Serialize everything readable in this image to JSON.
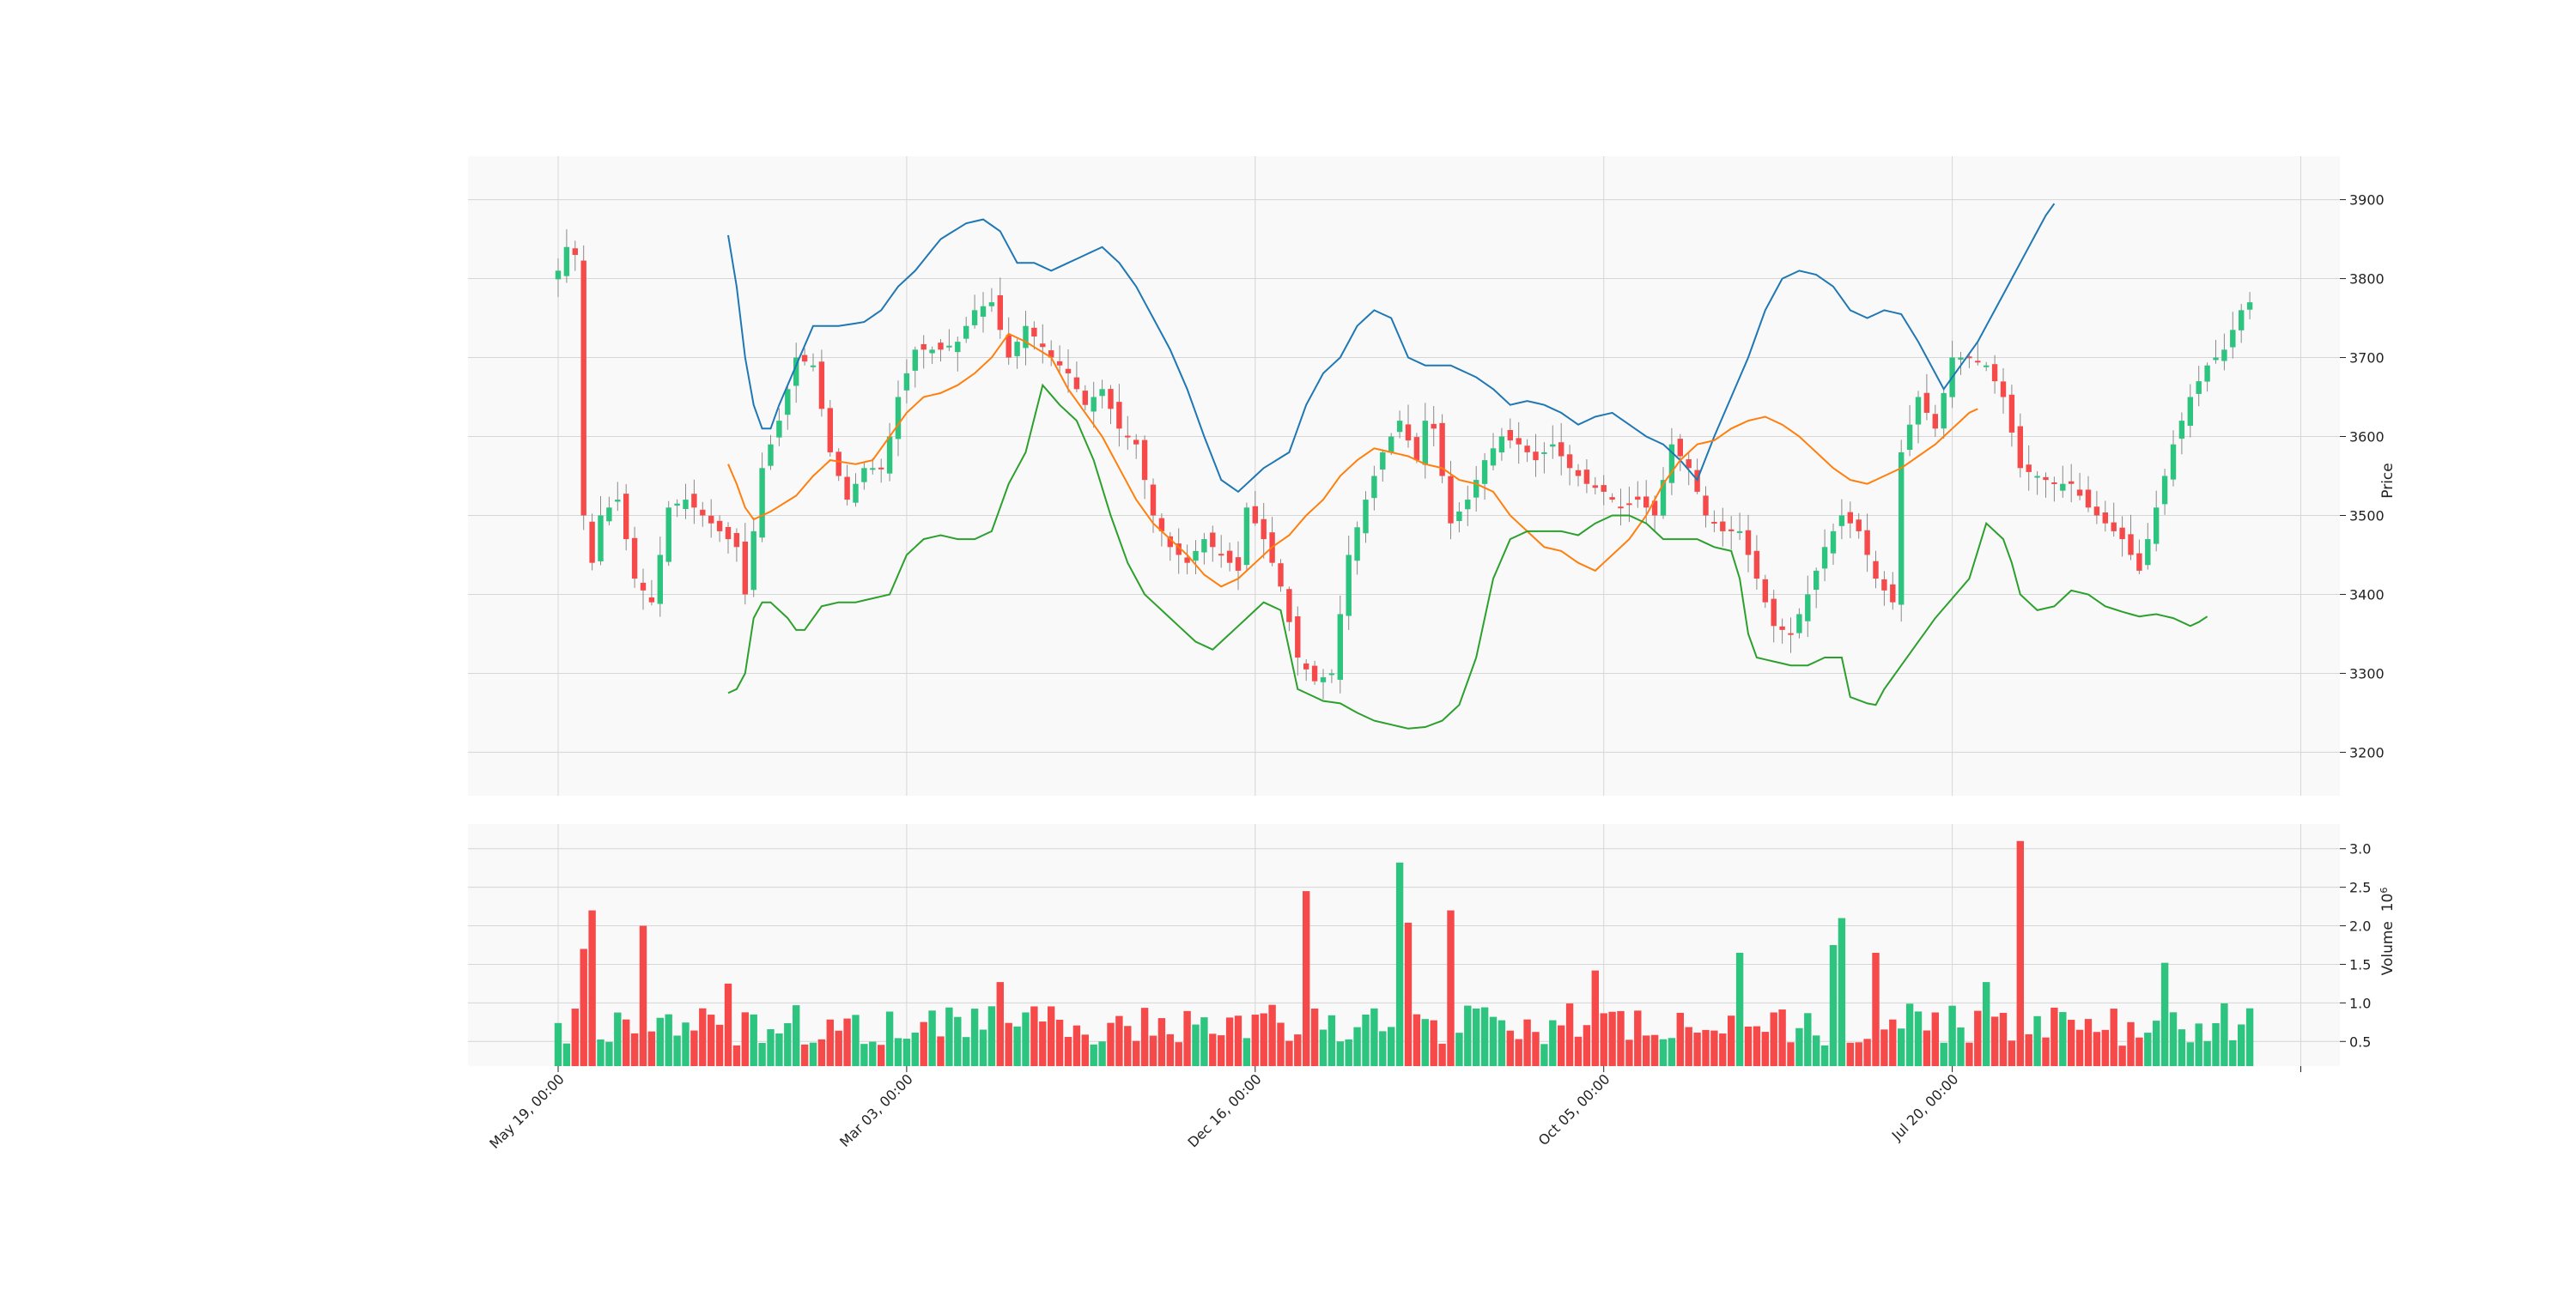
{
  "colors": {
    "up": "#2cc47f",
    "down": "#f64a4a",
    "upper_band": "#1f77b4",
    "middle_band": "#ff7f0e",
    "lower_band": "#2ca02c",
    "panel_bg": "#f9f9f9",
    "grid": "#d6d6d6",
    "wick": "#8a8a8a"
  },
  "chart_data": {
    "type": "candlestick",
    "candle_count": 200,
    "price_panel": {
      "ylabel": "Price",
      "ylim": [
        3145,
        3955
      ],
      "yticks": [
        3200,
        3300,
        3400,
        3500,
        3600,
        3700,
        3800,
        3900
      ],
      "ytick_labels": [
        "3200",
        "3300",
        "3400",
        "3500",
        "3600",
        "3700",
        "3800",
        "3900"
      ]
    },
    "volume_panel": {
      "ylabel": "Volume",
      "ylabel_exponent": "6",
      "ylim": [
        0.18,
        3.32
      ],
      "yticks": [
        0.5,
        1.0,
        1.5,
        2.0,
        2.5,
        3.0
      ],
      "ytick_labels": [
        "0.5",
        "1.0",
        "1.5",
        "2.0",
        "2.5",
        "3.0"
      ]
    },
    "xaxis": {
      "tick_labels": [
        "May 19, 00:00",
        "Mar 03, 00:00",
        "Dec 16, 00:00",
        "Oct 05, 00:00",
        "Jul 20, 00:00",
        ""
      ],
      "tick_candle_index": [
        0,
        41,
        82,
        123,
        164,
        205
      ]
    },
    "price_anchors": [
      [
        0,
        3810
      ],
      [
        1,
        3840
      ],
      [
        2,
        3830
      ],
      [
        3,
        3500
      ],
      [
        4,
        3440
      ],
      [
        5,
        3500
      ],
      [
        7,
        3520
      ],
      [
        9,
        3420
      ],
      [
        11,
        3390
      ],
      [
        13,
        3510
      ],
      [
        15,
        3520
      ],
      [
        17,
        3500
      ],
      [
        19,
        3480
      ],
      [
        21,
        3460
      ],
      [
        22,
        3400
      ],
      [
        24,
        3560
      ],
      [
        26,
        3620
      ],
      [
        28,
        3700
      ],
      [
        30,
        3690
      ],
      [
        32,
        3580
      ],
      [
        34,
        3520
      ],
      [
        36,
        3560
      ],
      [
        38,
        3560
      ],
      [
        39,
        3600
      ],
      [
        40,
        3650
      ],
      [
        42,
        3710
      ],
      [
        45,
        3710
      ],
      [
        47,
        3720
      ],
      [
        49,
        3760
      ],
      [
        51,
        3770
      ],
      [
        53,
        3700
      ],
      [
        55,
        3740
      ],
      [
        58,
        3700
      ],
      [
        60,
        3680
      ],
      [
        62,
        3640
      ],
      [
        64,
        3660
      ],
      [
        66,
        3610
      ],
      [
        68,
        3590
      ],
      [
        70,
        3500
      ],
      [
        72,
        3460
      ],
      [
        74,
        3440
      ],
      [
        76,
        3470
      ],
      [
        78,
        3450
      ],
      [
        80,
        3430
      ],
      [
        81,
        3510
      ],
      [
        83,
        3470
      ],
      [
        85,
        3410
      ],
      [
        87,
        3320
      ],
      [
        89,
        3290
      ],
      [
        91,
        3300
      ],
      [
        93,
        3450
      ],
      [
        95,
        3520
      ],
      [
        97,
        3580
      ],
      [
        99,
        3620
      ],
      [
        101,
        3570
      ],
      [
        102,
        3620
      ],
      [
        103,
        3610
      ],
      [
        105,
        3490
      ],
      [
        107,
        3520
      ],
      [
        109,
        3570
      ],
      [
        111,
        3600
      ],
      [
        113,
        3590
      ],
      [
        115,
        3570
      ],
      [
        117,
        3590
      ],
      [
        119,
        3560
      ],
      [
        121,
        3540
      ],
      [
        123,
        3530
      ],
      [
        125,
        3510
      ],
      [
        127,
        3520
      ],
      [
        129,
        3500
      ],
      [
        131,
        3590
      ],
      [
        133,
        3560
      ],
      [
        135,
        3500
      ],
      [
        137,
        3480
      ],
      [
        139,
        3480
      ],
      [
        141,
        3420
      ],
      [
        143,
        3360
      ],
      [
        145,
        3350
      ],
      [
        147,
        3400
      ],
      [
        149,
        3460
      ],
      [
        151,
        3500
      ],
      [
        153,
        3480
      ],
      [
        155,
        3420
      ],
      [
        157,
        3390
      ],
      [
        158,
        3580
      ],
      [
        160,
        3650
      ],
      [
        162,
        3610
      ],
      [
        164,
        3700
      ],
      [
        166,
        3700
      ],
      [
        168,
        3690
      ],
      [
        170,
        3650
      ],
      [
        172,
        3560
      ],
      [
        174,
        3550
      ],
      [
        176,
        3540
      ],
      [
        178,
        3540
      ],
      [
        180,
        3510
      ],
      [
        182,
        3490
      ],
      [
        184,
        3470
      ],
      [
        186,
        3430
      ],
      [
        188,
        3510
      ],
      [
        190,
        3590
      ],
      [
        192,
        3650
      ],
      [
        194,
        3690
      ],
      [
        196,
        3710
      ],
      [
        198,
        3760
      ],
      [
        199,
        3770
      ]
    ],
    "upper_band_anchors": [
      [
        20,
        3855
      ],
      [
        21,
        3790
      ],
      [
        22,
        3700
      ],
      [
        23,
        3640
      ],
      [
        24,
        3610
      ],
      [
        25,
        3610
      ],
      [
        26,
        3640
      ],
      [
        28,
        3690
      ],
      [
        30,
        3740
      ],
      [
        33,
        3740
      ],
      [
        36,
        3745
      ],
      [
        38,
        3760
      ],
      [
        40,
        3790
      ],
      [
        42,
        3810
      ],
      [
        45,
        3850
      ],
      [
        48,
        3870
      ],
      [
        50,
        3875
      ],
      [
        52,
        3860
      ],
      [
        54,
        3820
      ],
      [
        56,
        3820
      ],
      [
        58,
        3810
      ],
      [
        60,
        3820
      ],
      [
        62,
        3830
      ],
      [
        64,
        3840
      ],
      [
        66,
        3820
      ],
      [
        68,
        3790
      ],
      [
        70,
        3750
      ],
      [
        72,
        3710
      ],
      [
        74,
        3660
      ],
      [
        76,
        3600
      ],
      [
        78,
        3545
      ],
      [
        80,
        3530
      ],
      [
        83,
        3560
      ],
      [
        86,
        3580
      ],
      [
        88,
        3640
      ],
      [
        90,
        3680
      ],
      [
        92,
        3700
      ],
      [
        94,
        3740
      ],
      [
        96,
        3760
      ],
      [
        98,
        3750
      ],
      [
        100,
        3700
      ],
      [
        102,
        3690
      ],
      [
        105,
        3690
      ],
      [
        108,
        3675
      ],
      [
        110,
        3660
      ],
      [
        112,
        3640
      ],
      [
        114,
        3645
      ],
      [
        116,
        3640
      ],
      [
        118,
        3630
      ],
      [
        120,
        3615
      ],
      [
        122,
        3625
      ],
      [
        124,
        3630
      ],
      [
        126,
        3615
      ],
      [
        128,
        3600
      ],
      [
        130,
        3590
      ],
      [
        132,
        3570
      ],
      [
        134,
        3545
      ],
      [
        136,
        3600
      ],
      [
        138,
        3650
      ],
      [
        140,
        3700
      ],
      [
        142,
        3760
      ],
      [
        144,
        3800
      ],
      [
        146,
        3810
      ],
      [
        148,
        3805
      ],
      [
        150,
        3790
      ],
      [
        152,
        3760
      ],
      [
        154,
        3750
      ],
      [
        156,
        3760
      ],
      [
        158,
        3755
      ],
      [
        160,
        3720
      ],
      [
        162,
        3680
      ],
      [
        163,
        3660
      ],
      [
        165,
        3690
      ],
      [
        167,
        3720
      ],
      [
        169,
        3760
      ],
      [
        171,
        3800
      ],
      [
        173,
        3840
      ],
      [
        175,
        3880
      ],
      [
        176,
        3895
      ]
    ],
    "middle_band_anchors": [
      [
        20,
        3565
      ],
      [
        21,
        3540
      ],
      [
        22,
        3510
      ],
      [
        23,
        3495
      ],
      [
        25,
        3505
      ],
      [
        28,
        3525
      ],
      [
        30,
        3550
      ],
      [
        32,
        3570
      ],
      [
        35,
        3565
      ],
      [
        37,
        3570
      ],
      [
        39,
        3600
      ],
      [
        41,
        3630
      ],
      [
        43,
        3650
      ],
      [
        45,
        3655
      ],
      [
        47,
        3665
      ],
      [
        49,
        3680
      ],
      [
        51,
        3700
      ],
      [
        53,
        3730
      ],
      [
        55,
        3720
      ],
      [
        58,
        3700
      ],
      [
        60,
        3660
      ],
      [
        62,
        3630
      ],
      [
        64,
        3600
      ],
      [
        66,
        3560
      ],
      [
        68,
        3520
      ],
      [
        70,
        3490
      ],
      [
        72,
        3470
      ],
      [
        74,
        3450
      ],
      [
        76,
        3425
      ],
      [
        78,
        3410
      ],
      [
        80,
        3420
      ],
      [
        82,
        3440
      ],
      [
        84,
        3460
      ],
      [
        86,
        3475
      ],
      [
        88,
        3500
      ],
      [
        90,
        3520
      ],
      [
        92,
        3550
      ],
      [
        94,
        3570
      ],
      [
        96,
        3585
      ],
      [
        98,
        3580
      ],
      [
        100,
        3575
      ],
      [
        102,
        3565
      ],
      [
        104,
        3560
      ],
      [
        106,
        3545
      ],
      [
        108,
        3540
      ],
      [
        110,
        3530
      ],
      [
        112,
        3500
      ],
      [
        114,
        3480
      ],
      [
        116,
        3460
      ],
      [
        118,
        3455
      ],
      [
        120,
        3440
      ],
      [
        122,
        3430
      ],
      [
        124,
        3450
      ],
      [
        126,
        3470
      ],
      [
        128,
        3500
      ],
      [
        130,
        3540
      ],
      [
        132,
        3570
      ],
      [
        134,
        3590
      ],
      [
        136,
        3595
      ],
      [
        138,
        3610
      ],
      [
        140,
        3620
      ],
      [
        142,
        3625
      ],
      [
        144,
        3615
      ],
      [
        146,
        3600
      ],
      [
        148,
        3580
      ],
      [
        150,
        3560
      ],
      [
        152,
        3545
      ],
      [
        154,
        3540
      ],
      [
        156,
        3550
      ],
      [
        158,
        3560
      ],
      [
        160,
        3575
      ],
      [
        162,
        3590
      ],
      [
        164,
        3610
      ],
      [
        166,
        3630
      ],
      [
        167,
        3635
      ]
    ],
    "lower_band_anchors": [
      [
        20,
        3275
      ],
      [
        21,
        3280
      ],
      [
        22,
        3300
      ],
      [
        23,
        3370
      ],
      [
        24,
        3390
      ],
      [
        25,
        3390
      ],
      [
        27,
        3370
      ],
      [
        28,
        3355
      ],
      [
        29,
        3355
      ],
      [
        31,
        3385
      ],
      [
        33,
        3390
      ],
      [
        35,
        3390
      ],
      [
        37,
        3395
      ],
      [
        39,
        3400
      ],
      [
        41,
        3450
      ],
      [
        43,
        3470
      ],
      [
        45,
        3475
      ],
      [
        47,
        3470
      ],
      [
        49,
        3470
      ],
      [
        51,
        3480
      ],
      [
        53,
        3540
      ],
      [
        55,
        3580
      ],
      [
        57,
        3665
      ],
      [
        59,
        3640
      ],
      [
        61,
        3620
      ],
      [
        63,
        3570
      ],
      [
        65,
        3500
      ],
      [
        67,
        3440
      ],
      [
        69,
        3400
      ],
      [
        71,
        3380
      ],
      [
        73,
        3360
      ],
      [
        75,
        3340
      ],
      [
        77,
        3330
      ],
      [
        79,
        3350
      ],
      [
        81,
        3370
      ],
      [
        83,
        3390
      ],
      [
        85,
        3380
      ],
      [
        86,
        3330
      ],
      [
        87,
        3280
      ],
      [
        88,
        3275
      ],
      [
        90,
        3265
      ],
      [
        92,
        3262
      ],
      [
        94,
        3250
      ],
      [
        96,
        3240
      ],
      [
        98,
        3235
      ],
      [
        100,
        3230
      ],
      [
        102,
        3232
      ],
      [
        104,
        3240
      ],
      [
        106,
        3260
      ],
      [
        108,
        3320
      ],
      [
        110,
        3420
      ],
      [
        112,
        3470
      ],
      [
        114,
        3480
      ],
      [
        116,
        3480
      ],
      [
        118,
        3480
      ],
      [
        120,
        3475
      ],
      [
        122,
        3490
      ],
      [
        124,
        3500
      ],
      [
        126,
        3500
      ],
      [
        128,
        3490
      ],
      [
        130,
        3470
      ],
      [
        132,
        3470
      ],
      [
        134,
        3470
      ],
      [
        136,
        3460
      ],
      [
        138,
        3455
      ],
      [
        139,
        3420
      ],
      [
        140,
        3350
      ],
      [
        141,
        3320
      ],
      [
        143,
        3315
      ],
      [
        145,
        3310
      ],
      [
        147,
        3310
      ],
      [
        149,
        3320
      ],
      [
        151,
        3320
      ],
      [
        152,
        3270
      ],
      [
        154,
        3262
      ],
      [
        155,
        3260
      ],
      [
        156,
        3280
      ],
      [
        158,
        3310
      ],
      [
        160,
        3340
      ],
      [
        162,
        3370
      ],
      [
        164,
        3395
      ],
      [
        166,
        3420
      ],
      [
        168,
        3490
      ],
      [
        170,
        3470
      ],
      [
        171,
        3440
      ],
      [
        172,
        3400
      ],
      [
        174,
        3380
      ],
      [
        176,
        3385
      ],
      [
        178,
        3405
      ],
      [
        180,
        3400
      ],
      [
        182,
        3385
      ],
      [
        184,
        3378
      ],
      [
        186,
        3372
      ],
      [
        188,
        3375
      ],
      [
        190,
        3370
      ],
      [
        192,
        3360
      ],
      [
        193,
        3365
      ],
      [
        194,
        3372
      ]
    ],
    "volume_baseline": 0.72,
    "volume_spikes": [
      [
        3,
        1.7
      ],
      [
        4,
        2.2
      ],
      [
        10,
        2.0
      ],
      [
        20,
        1.25
      ],
      [
        52,
        1.27
      ],
      [
        88,
        2.45
      ],
      [
        99,
        2.82
      ],
      [
        100,
        2.04
      ],
      [
        105,
        2.2
      ],
      [
        122,
        1.42
      ],
      [
        139,
        1.65
      ],
      [
        150,
        1.75
      ],
      [
        151,
        2.1
      ],
      [
        155,
        1.65
      ],
      [
        168,
        1.27
      ],
      [
        172,
        3.1
      ],
      [
        189,
        1.52
      ]
    ]
  }
}
